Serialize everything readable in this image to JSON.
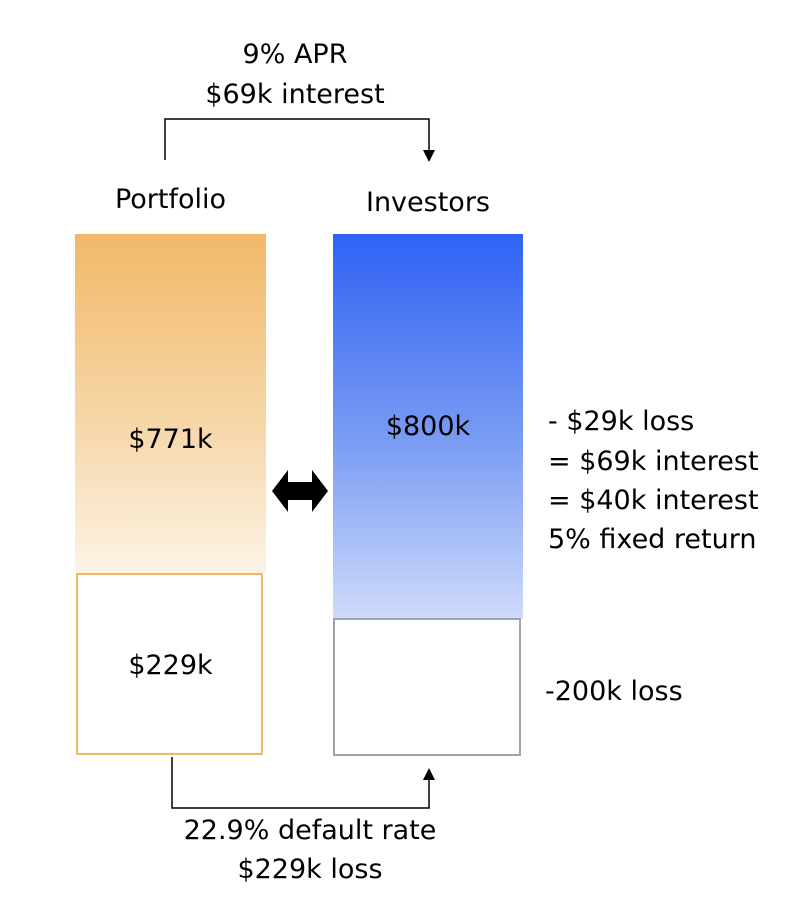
{
  "top_flow": {
    "line1": "9% APR",
    "line2": "$69k interest"
  },
  "portfolio": {
    "title": "Portfolio",
    "value": "$771k",
    "loss_value": "$229k"
  },
  "investors": {
    "title": "Investors",
    "value": "$800k"
  },
  "explanation": {
    "line1": "-  $29k loss",
    "line2": "= $69k interest",
    "line3": "= $40k interest",
    "line4": "5% fixed return"
  },
  "investor_loss": "-200k loss",
  "bottom_flow": {
    "line1": "22.9% default rate",
    "line2": "$229k loss"
  },
  "colors": {
    "portfolio": "#f1b867",
    "investors": "#2f62f5",
    "loss_border_portfolio": "#f2b868",
    "loss_border_investors": "#9ea3ac"
  }
}
